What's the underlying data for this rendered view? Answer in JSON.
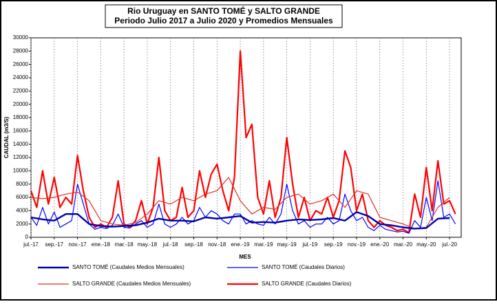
{
  "chart_data": {
    "type": "line",
    "title": "Rio Uruguay en SANTO TOMÉ y SALTO GRANDE",
    "subtitle": "Periodo Julio 2017 a Julio 2020 y Promedios Mensuales",
    "x_label": "MES",
    "y_label": "CAUDAL (m3/S)",
    "xlim": [
      0,
      37
    ],
    "ylim": [
      0,
      30000
    ],
    "yticks": [
      0,
      2000,
      4000,
      6000,
      8000,
      10000,
      12000,
      14000,
      16000,
      18000,
      20000,
      22000,
      24000,
      26000,
      28000,
      30000
    ],
    "xticks": [
      {
        "value": 0,
        "label": "jul.-17"
      },
      {
        "value": 2,
        "label": "sep.-17"
      },
      {
        "value": 4,
        "label": "nov.-17"
      },
      {
        "value": 6,
        "label": "ene.-18"
      },
      {
        "value": 8,
        "label": "mar.-18"
      },
      {
        "value": 10,
        "label": "may.-18"
      },
      {
        "value": 12,
        "label": "jul.-18"
      },
      {
        "value": 14,
        "label": "sep.-18"
      },
      {
        "value": 16,
        "label": "nov.-18"
      },
      {
        "value": 18,
        "label": "ene.-19"
      },
      {
        "value": 20,
        "label": "mar.-19"
      },
      {
        "value": 22,
        "label": "may.-19"
      },
      {
        "value": 24,
        "label": "jul.-19"
      },
      {
        "value": 26,
        "label": "sep.-19"
      },
      {
        "value": 28,
        "label": "nov.-19"
      },
      {
        "value": 30,
        "label": "ene.-20"
      },
      {
        "value": 32,
        "label": "mar.-20"
      },
      {
        "value": 34,
        "label": "may.-20"
      },
      {
        "value": 36,
        "label": "jul.-20"
      }
    ],
    "grid": true,
    "series": [
      {
        "name": "SALTO GRANDE (Caudales Diarios)",
        "color": "#ff0000",
        "width": 2.2,
        "x": [
          0,
          0.5,
          1,
          1.5,
          2,
          2.5,
          3,
          3.5,
          4,
          4.5,
          5,
          5.5,
          6,
          6.5,
          7,
          7.5,
          8,
          8.5,
          9,
          9.5,
          10,
          10.5,
          11,
          11.5,
          12,
          12.5,
          13,
          13.5,
          14,
          14.5,
          15,
          15.5,
          16,
          16.5,
          17,
          17.5,
          18,
          18.5,
          19,
          19.5,
          20,
          20.5,
          21,
          21.5,
          22,
          22.5,
          23,
          23.5,
          24,
          24.5,
          25,
          25.5,
          26,
          26.5,
          27,
          27.5,
          28,
          28.5,
          29,
          29.5,
          30,
          30.5,
          31,
          31.5,
          32,
          32.5,
          33,
          33.5,
          34,
          34.5,
          35,
          35.5,
          36,
          36.5
        ],
        "values": [
          7000,
          4500,
          10000,
          5000,
          9000,
          4500,
          6000,
          5000,
          12300,
          7000,
          3000,
          1500,
          2000,
          1500,
          3000,
          8500,
          2000,
          1500,
          2500,
          5500,
          2000,
          4500,
          12000,
          4000,
          2500,
          3000,
          7500,
          3000,
          4000,
          10000,
          6000,
          9500,
          11000,
          7000,
          4000,
          9000,
          28000,
          15000,
          17000,
          6000,
          3500,
          8500,
          3000,
          6000,
          15000,
          8000,
          3000,
          6000,
          2500,
          4000,
          3500,
          6000,
          3000,
          5500,
          13000,
          10500,
          4000,
          6500,
          2500,
          1500,
          2500,
          1800,
          1500,
          1000,
          1200,
          700,
          6500,
          3000,
          10500,
          4000,
          11500,
          5000,
          5500,
          3500
        ]
      },
      {
        "name": "SANTO TOMÉ (Caudales Diarios)",
        "color": "#0000ff",
        "width": 1.2,
        "x": [
          0,
          0.5,
          1,
          1.5,
          2,
          2.5,
          3,
          3.5,
          4,
          4.5,
          5,
          5.5,
          6,
          6.5,
          7,
          7.5,
          8,
          8.5,
          9,
          9.5,
          10,
          10.5,
          11,
          11.5,
          12,
          12.5,
          13,
          13.5,
          14,
          14.5,
          15,
          15.5,
          16,
          16.5,
          17,
          17.5,
          18,
          18.5,
          19,
          19.5,
          20,
          20.5,
          21,
          21.5,
          22,
          22.5,
          23,
          23.5,
          24,
          24.5,
          25,
          25.5,
          26,
          26.5,
          27,
          27.5,
          28,
          28.5,
          29,
          29.5,
          30,
          30.5,
          31,
          31.5,
          32,
          32.5,
          33,
          33.5,
          34,
          34.5,
          35,
          35.5,
          36,
          36.5
        ],
        "values": [
          3000,
          1800,
          4500,
          2000,
          3800,
          1500,
          2000,
          2500,
          8000,
          5000,
          2000,
          1200,
          1500,
          1300,
          1800,
          3500,
          1500,
          1400,
          2000,
          2500,
          1500,
          2000,
          5000,
          2000,
          1500,
          2000,
          3000,
          2000,
          2500,
          4500,
          3000,
          4000,
          3500,
          2500,
          2000,
          3500,
          3500,
          2000,
          2500,
          2000,
          1800,
          3000,
          2000,
          3500,
          8000,
          4000,
          2000,
          2500,
          1500,
          2000,
          2000,
          3000,
          2000,
          2500,
          6500,
          4000,
          2500,
          3000,
          1500,
          1000,
          1800,
          1200,
          1000,
          800,
          900,
          600,
          2500,
          1500,
          6000,
          2500,
          8500,
          3000,
          3500,
          2000
        ]
      },
      {
        "name": "SALTO GRANDE (Caudales Medios Mensuales)",
        "color": "#e03020",
        "width": 1.2,
        "x": [
          0,
          1,
          2,
          3,
          4,
          5,
          6,
          7,
          8,
          9,
          10,
          11,
          12,
          13,
          14,
          15,
          16,
          17,
          18,
          19,
          20,
          21,
          22,
          23,
          24,
          25,
          26,
          27,
          28,
          29,
          30,
          31,
          32,
          33,
          34,
          35,
          36
        ],
        "values": [
          6000,
          5800,
          6000,
          6500,
          6800,
          5500,
          2500,
          2000,
          1800,
          2200,
          3500,
          5500,
          5000,
          6000,
          5500,
          6500,
          7000,
          9000,
          5500,
          3500,
          4500,
          4200,
          6000,
          6500,
          5000,
          5500,
          6500,
          4500,
          7000,
          6500,
          3000,
          2500,
          2000,
          1300,
          1500,
          4500,
          6000
        ]
      },
      {
        "name": "SANTO TOMÉ (Caudales Medios Mensuales)",
        "color": "#0000aa",
        "width": 2.4,
        "x": [
          0,
          1,
          2,
          3,
          4,
          5,
          6,
          7,
          8,
          9,
          10,
          11,
          12,
          13,
          14,
          15,
          16,
          17,
          18,
          19,
          20,
          21,
          22,
          23,
          24,
          25,
          26,
          27,
          28,
          29,
          30,
          31,
          32,
          33,
          34,
          35,
          36
        ],
        "values": [
          3000,
          2700,
          2500,
          3500,
          3500,
          2000,
          1700,
          1600,
          1700,
          1800,
          2200,
          2800,
          2500,
          2500,
          2400,
          3000,
          2800,
          3000,
          3200,
          2200,
          2300,
          2200,
          2500,
          2700,
          2600,
          2700,
          2900,
          2500,
          3800,
          3200,
          2000,
          1800,
          1500,
          1300,
          1400,
          2800,
          2900
        ]
      }
    ]
  }
}
